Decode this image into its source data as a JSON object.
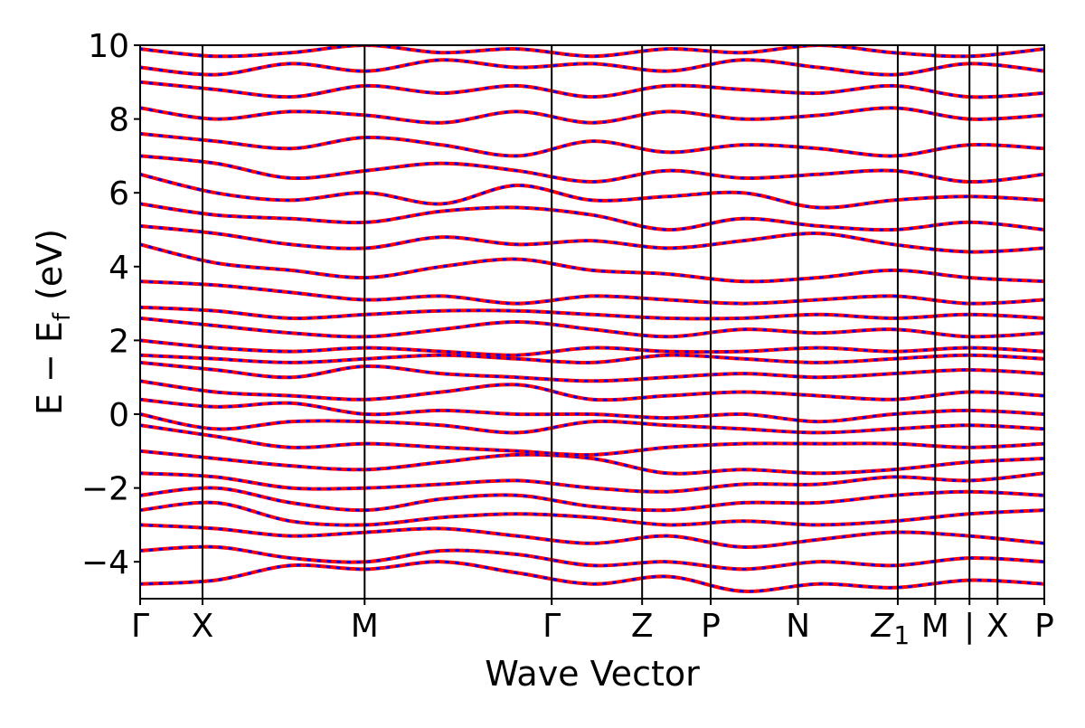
{
  "chart_data": {
    "type": "line",
    "title": "",
    "xlabel": "Wave Vector",
    "ylabel": "E − E",
    "ylabel_subscript": "f",
    "ylabel_unit": "(eV)",
    "ylim": [
      -5,
      10
    ],
    "y_ticks": [
      "10",
      "8",
      "6",
      "4",
      "2",
      "0",
      "−2",
      "−4"
    ],
    "y_tick_values": [
      10,
      8,
      6,
      4,
      2,
      0,
      -2,
      -4
    ],
    "x_range": [
      0,
      14.5
    ],
    "k_points": [
      {
        "label": "Γ",
        "x": 0
      },
      {
        "label": "X",
        "x": 1
      },
      {
        "label": "M",
        "x": 3.6
      },
      {
        "label": "Γ",
        "x": 6.6
      },
      {
        "label": "Z",
        "x": 8.05
      },
      {
        "label": "P",
        "x": 9.15
      },
      {
        "label": "N",
        "x": 10.55
      },
      {
        "label": "Z",
        "x": 12.15,
        "subscript": "1"
      },
      {
        "label": "M",
        "x": 12.75
      },
      {
        "label": "|",
        "x": 13.3
      },
      {
        "label": "X",
        "x": 13.75
      },
      {
        "label": "P",
        "x": 14.5
      }
    ],
    "grid": false,
    "series_styles": [
      {
        "color": "#ff0000",
        "style": "solid",
        "width": 4
      },
      {
        "color": "#0000ff",
        "style": "dotted",
        "width": 3
      }
    ],
    "bands": [
      {
        "energies": [
          -4.6,
          -4.5,
          -4.1,
          -4.2,
          -4.0,
          -4.3,
          -4.6,
          -4.4,
          -4.8,
          -4.6,
          -4.7,
          -4.5,
          -4.6
        ]
      },
      {
        "energies": [
          -3.7,
          -3.6,
          -3.9,
          -4.0,
          -3.7,
          -3.8,
          -4.1,
          -4.0,
          -4.2,
          -4.0,
          -4.1,
          -3.9,
          -4.0
        ]
      },
      {
        "energies": [
          -3.0,
          -3.1,
          -3.3,
          -3.2,
          -3.1,
          -3.3,
          -3.5,
          -3.3,
          -3.6,
          -3.4,
          -3.2,
          -3.3,
          -3.5
        ]
      },
      {
        "energies": [
          -2.6,
          -2.4,
          -2.9,
          -3.0,
          -2.8,
          -2.7,
          -2.8,
          -3.0,
          -2.9,
          -3.0,
          -2.9,
          -2.7,
          -2.6
        ]
      },
      {
        "energies": [
          -2.2,
          -2.0,
          -2.4,
          -2.6,
          -2.3,
          -2.2,
          -2.5,
          -2.6,
          -2.4,
          -2.4,
          -2.2,
          -2.1,
          -2.2
        ]
      },
      {
        "energies": [
          -1.6,
          -1.7,
          -2.0,
          -2.0,
          -1.9,
          -1.8,
          -2.0,
          -2.1,
          -1.9,
          -1.9,
          -1.7,
          -1.8,
          -1.6
        ]
      },
      {
        "energies": [
          -1.0,
          -1.2,
          -1.4,
          -1.5,
          -1.3,
          -1.1,
          -1.2,
          -1.6,
          -1.5,
          -1.6,
          -1.5,
          -1.3,
          -1.2
        ]
      },
      {
        "energies": [
          -0.3,
          -0.6,
          -0.9,
          -0.8,
          -0.9,
          -1.0,
          -1.1,
          -0.9,
          -0.8,
          -0.8,
          -0.8,
          -0.9,
          -0.8
        ]
      },
      {
        "energies": [
          0.0,
          -0.4,
          -0.2,
          -0.2,
          -0.3,
          -0.5,
          -0.2,
          -0.3,
          -0.4,
          -0.5,
          -0.4,
          -0.3,
          -0.4
        ]
      },
      {
        "energies": [
          0.4,
          0.2,
          0.3,
          0.0,
          0.1,
          0.0,
          0.0,
          -0.1,
          0.0,
          -0.2,
          0.0,
          0.1,
          0.0
        ]
      },
      {
        "energies": [
          0.9,
          0.6,
          0.5,
          0.4,
          0.6,
          0.8,
          0.4,
          0.5,
          0.6,
          0.5,
          0.4,
          0.6,
          0.5
        ]
      },
      {
        "energies": [
          1.4,
          1.2,
          1.0,
          1.3,
          1.1,
          1.0,
          0.9,
          1.0,
          1.1,
          1.0,
          1.1,
          1.2,
          1.1
        ]
      },
      {
        "energies": [
          1.6,
          1.5,
          1.4,
          1.5,
          1.6,
          1.5,
          1.4,
          1.6,
          1.5,
          1.4,
          1.5,
          1.6,
          1.5
        ]
      },
      {
        "energies": [
          2.0,
          1.8,
          1.7,
          1.8,
          1.7,
          1.6,
          1.8,
          1.7,
          1.7,
          1.8,
          1.7,
          1.8,
          1.7
        ]
      },
      {
        "energies": [
          2.6,
          2.4,
          2.2,
          2.1,
          2.3,
          2.5,
          2.3,
          2.1,
          2.3,
          2.2,
          2.3,
          2.1,
          2.2
        ]
      },
      {
        "energies": [
          2.9,
          2.8,
          2.6,
          2.7,
          2.8,
          2.8,
          2.7,
          2.6,
          2.6,
          2.7,
          2.6,
          2.7,
          2.6
        ]
      },
      {
        "energies": [
          3.6,
          3.5,
          3.3,
          3.1,
          3.2,
          3.0,
          3.2,
          3.1,
          3.0,
          3.1,
          3.2,
          3.0,
          3.1
        ]
      },
      {
        "energies": [
          4.6,
          4.1,
          3.9,
          3.7,
          4.0,
          4.2,
          3.9,
          3.8,
          3.6,
          3.7,
          3.9,
          3.7,
          3.6
        ]
      },
      {
        "energies": [
          5.1,
          4.9,
          4.6,
          4.5,
          4.8,
          4.6,
          4.7,
          4.5,
          4.7,
          4.9,
          4.6,
          4.4,
          4.5
        ]
      },
      {
        "energies": [
          5.7,
          5.4,
          5.3,
          5.2,
          5.5,
          5.6,
          5.4,
          5.0,
          5.3,
          5.1,
          5.0,
          5.2,
          5.0
        ]
      },
      {
        "energies": [
          6.5,
          6.0,
          5.8,
          6.0,
          5.7,
          6.2,
          5.8,
          5.9,
          6.0,
          5.6,
          5.8,
          5.9,
          5.8
        ]
      },
      {
        "energies": [
          7.0,
          6.8,
          6.4,
          6.6,
          6.8,
          6.6,
          6.3,
          6.6,
          6.4,
          6.5,
          6.6,
          6.3,
          6.5
        ]
      },
      {
        "energies": [
          7.6,
          7.4,
          7.2,
          7.5,
          7.3,
          7.0,
          7.4,
          7.1,
          7.3,
          7.2,
          7.0,
          7.3,
          7.2
        ]
      },
      {
        "energies": [
          8.3,
          8.0,
          8.2,
          8.1,
          7.9,
          8.2,
          7.9,
          8.2,
          8.0,
          8.1,
          8.3,
          8.0,
          8.1
        ]
      },
      {
        "energies": [
          9.0,
          8.8,
          8.6,
          8.9,
          8.7,
          8.9,
          8.6,
          8.9,
          8.8,
          8.7,
          8.9,
          8.6,
          8.7
        ]
      },
      {
        "energies": [
          9.4,
          9.2,
          9.5,
          9.3,
          9.6,
          9.4,
          9.5,
          9.3,
          9.6,
          9.4,
          9.2,
          9.5,
          9.3
        ]
      },
      {
        "energies": [
          9.9,
          9.7,
          9.8,
          10.0,
          9.8,
          9.9,
          9.7,
          9.9,
          9.8,
          10.0,
          9.8,
          9.7,
          9.9
        ]
      }
    ]
  }
}
